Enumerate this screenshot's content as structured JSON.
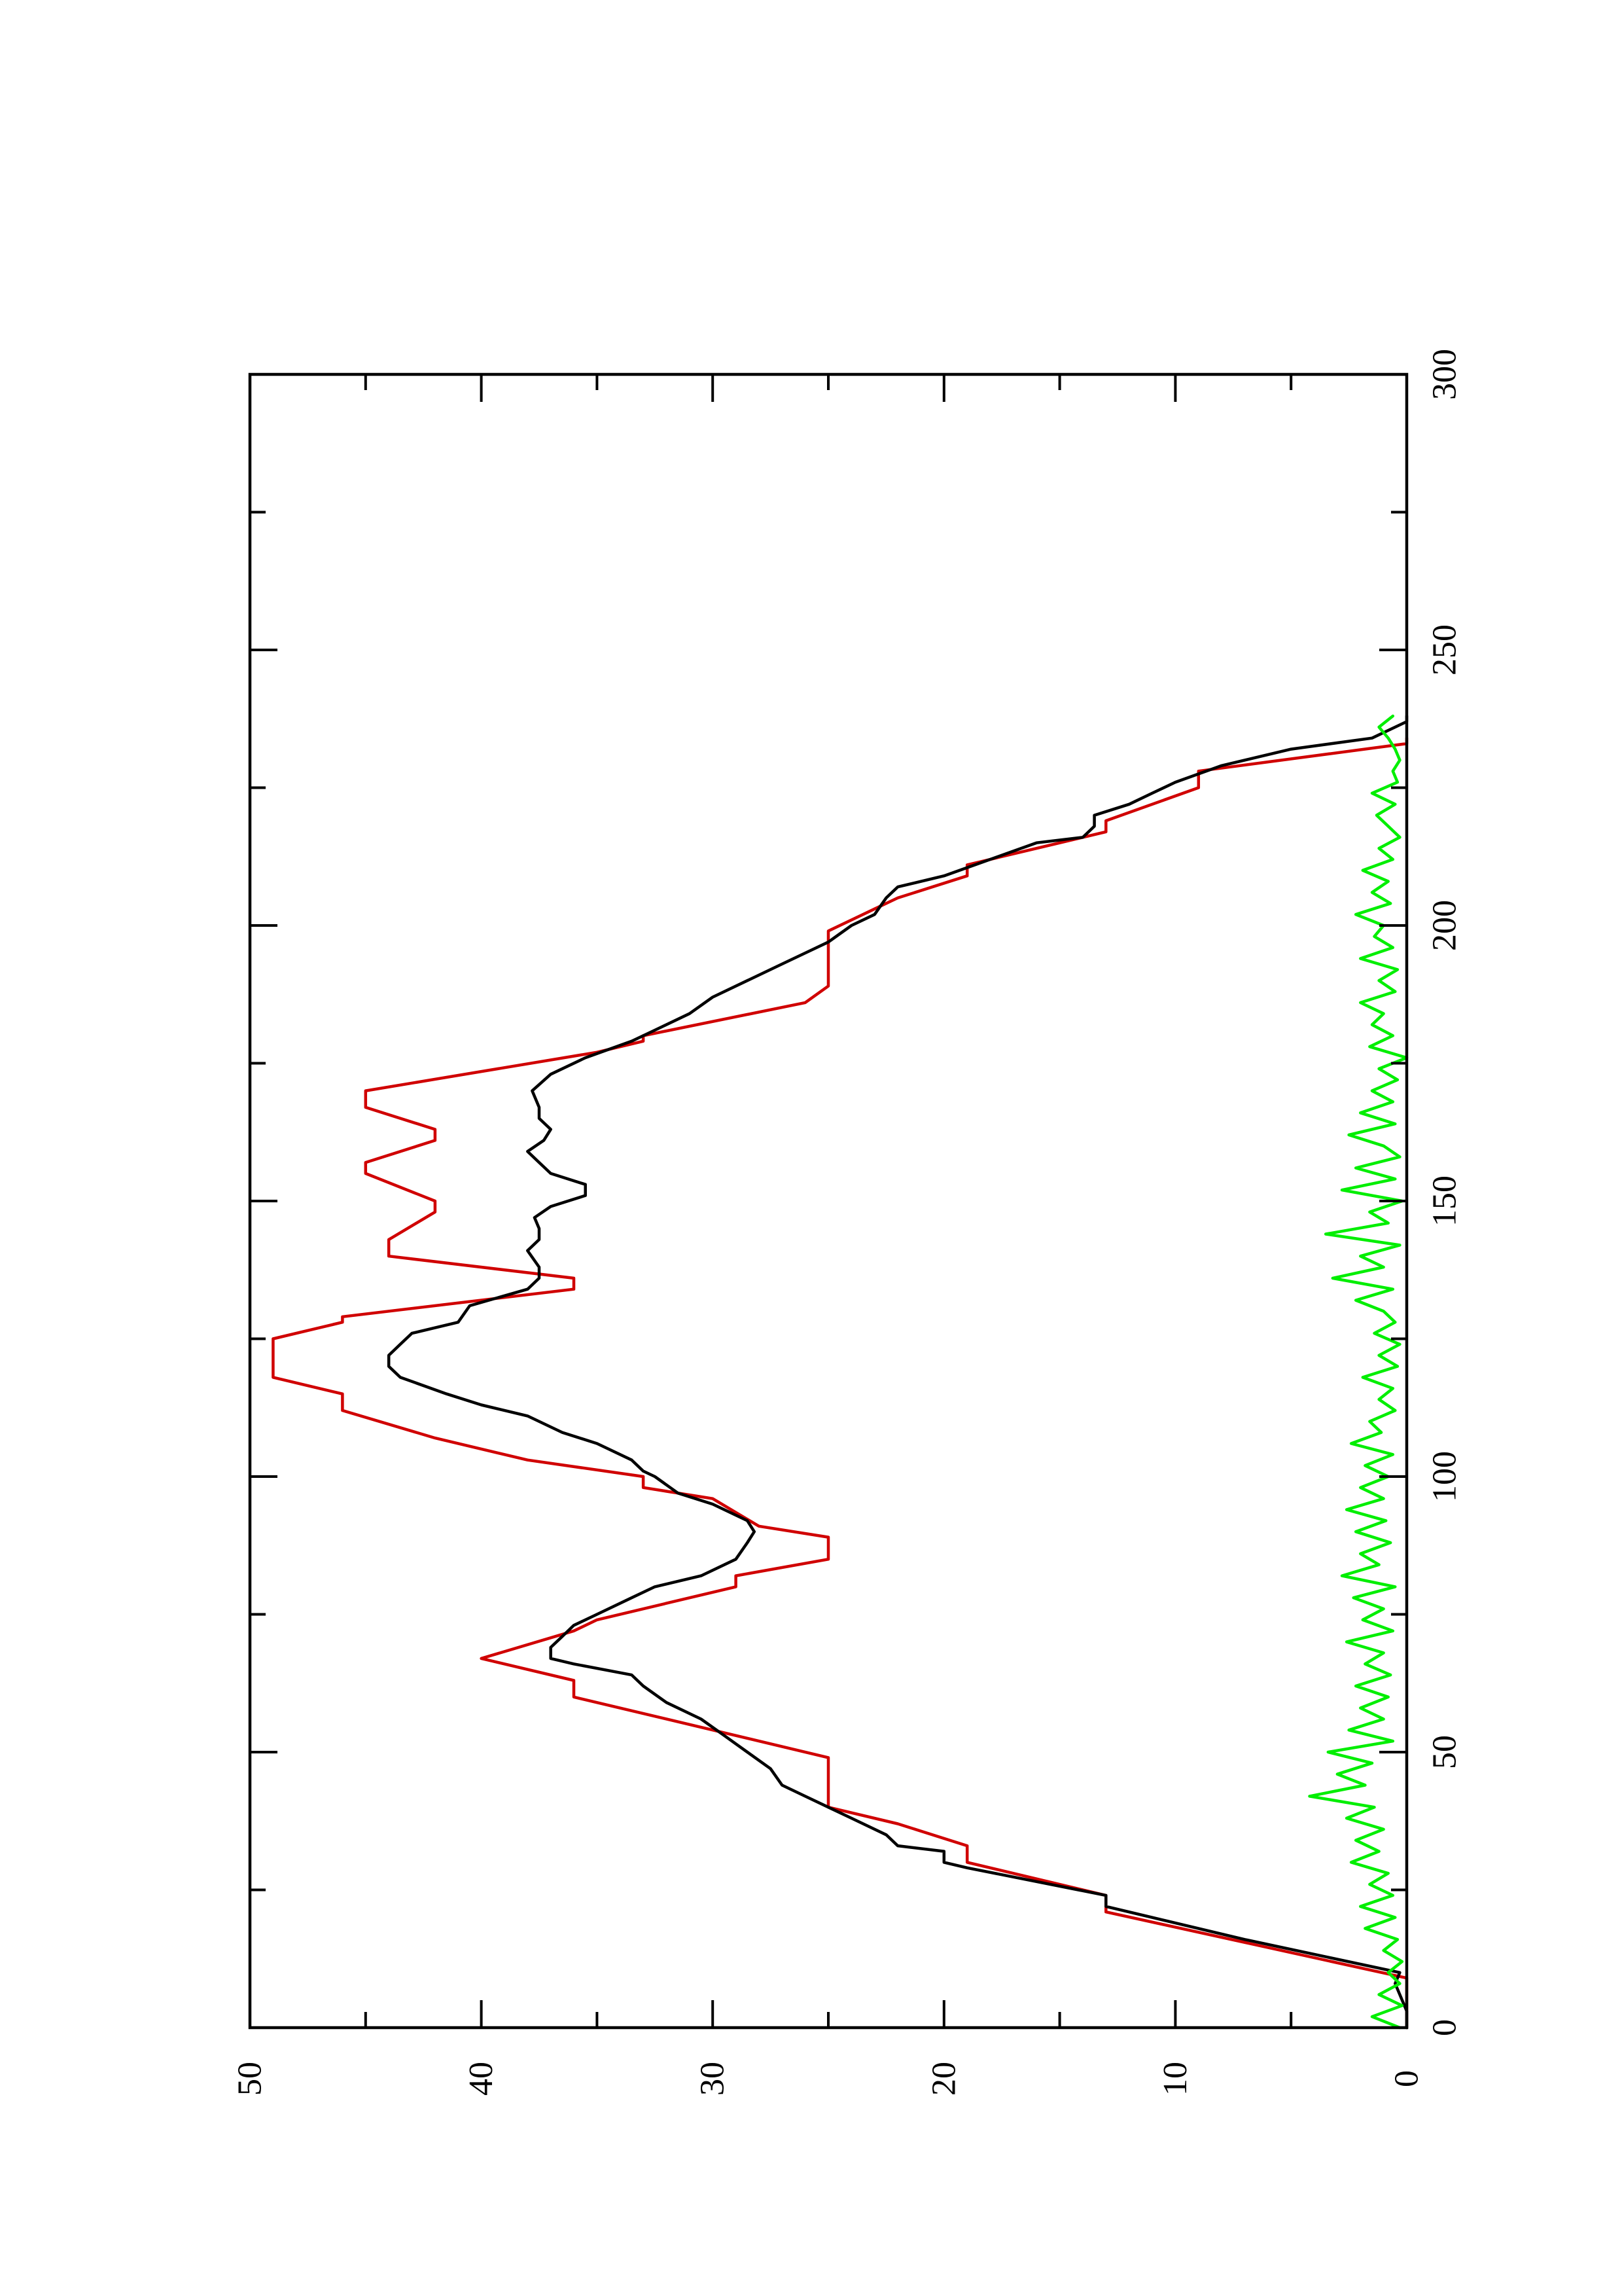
{
  "chart_data": {
    "type": "line",
    "orientation": "rotated-90-ccw",
    "title": "",
    "xlabel": "",
    "ylabel": "",
    "xlim": [
      0,
      300
    ],
    "ylim": [
      0,
      50
    ],
    "x_ticks": [
      "0",
      "50",
      "100",
      "150",
      "200",
      "250",
      "300"
    ],
    "y_ticks": [
      "0",
      "10",
      "20",
      "30",
      "40",
      "50"
    ],
    "grid": false,
    "legend": "none",
    "series": [
      {
        "color": "#d00000",
        "x": [
          0,
          9,
          21,
          24,
          30,
          33,
          37,
          40,
          49,
          53,
          60,
          63,
          67,
          72,
          74,
          80,
          82,
          85,
          89,
          91,
          96,
          98,
          100,
          103,
          107,
          112,
          115,
          118,
          125,
          128,
          129,
          134,
          136,
          140,
          143,
          148,
          150,
          155,
          157,
          161,
          163,
          167,
          170,
          177,
          179,
          180,
          186,
          189,
          193,
          197,
          199,
          203,
          205,
          209,
          211,
          217,
          219,
          225,
          228,
          233,
          234
        ],
        "y": [
          0,
          0,
          13,
          13,
          19,
          19,
          22,
          25,
          25,
          29,
          36,
          36,
          40,
          36,
          35,
          29,
          29,
          25,
          25,
          28,
          30,
          33,
          33,
          38,
          42,
          46,
          46,
          49,
          49,
          46,
          46,
          36,
          36,
          44,
          44,
          42,
          42,
          45,
          45,
          42,
          42,
          45,
          45,
          35,
          33,
          33,
          26,
          25,
          25,
          25,
          25,
          23,
          22,
          19,
          19,
          13,
          13,
          9,
          9,
          0,
          0
        ]
      },
      {
        "color": "#000000",
        "x": [
          0,
          3,
          8,
          10,
          16,
          22,
          24,
          29,
          30,
          32,
          33,
          35,
          38,
          40,
          42,
          44,
          47,
          50,
          53,
          56,
          59,
          62,
          64,
          66,
          67,
          69,
          71,
          73,
          75,
          78,
          80,
          82,
          85,
          88,
          90,
          92,
          95,
          97,
          100,
          101,
          103,
          106,
          108,
          111,
          113,
          115,
          118,
          120,
          122,
          124,
          126,
          128,
          131,
          134,
          136,
          138,
          141,
          143,
          145,
          147,
          149,
          151,
          153,
          155,
          157,
          159,
          161,
          163,
          165,
          167,
          170,
          173,
          176,
          179,
          181,
          184,
          187,
          190,
          193,
          195,
          197,
          200,
          202,
          205,
          207,
          209,
          212,
          215,
          216,
          218,
          220,
          222,
          224,
          226,
          229,
          232,
          234,
          237,
          238
        ],
        "y": [
          0,
          0,
          0.5,
          0.3,
          7,
          13,
          13,
          19,
          20,
          20,
          22,
          22.5,
          24,
          25,
          26,
          27,
          27.5,
          28.5,
          29.5,
          30.5,
          32,
          33,
          33.5,
          36,
          37,
          37,
          36.5,
          36,
          35,
          33.5,
          32.5,
          30.5,
          29,
          28.5,
          28.2,
          28.5,
          30,
          31.5,
          32.5,
          33,
          33.5,
          35,
          36.5,
          38,
          40,
          41.5,
          43.5,
          44,
          44,
          43.5,
          43,
          41,
          40.5,
          38,
          37.5,
          37.5,
          38,
          37.5,
          37.5,
          37.7,
          37,
          35.5,
          35.5,
          37,
          37.5,
          38,
          37.3,
          37,
          37.5,
          37.5,
          37.8,
          37,
          35.5,
          33.5,
          32.5,
          31,
          30,
          28.5,
          27,
          26,
          25,
          24,
          23,
          22.5,
          22,
          20,
          18,
          16,
          14,
          13.5,
          13.5,
          12,
          11,
          10,
          8,
          5,
          1.5,
          0,
          0
        ]
      },
      {
        "color": "#00ee00",
        "x": [
          0,
          2,
          4,
          6,
          8,
          10,
          12,
          14,
          16,
          18,
          20,
          22,
          24,
          26,
          28,
          30,
          32,
          34,
          36,
          38,
          40,
          42,
          44,
          46,
          48,
          50,
          52,
          54,
          56,
          58,
          60,
          62,
          64,
          66,
          68,
          70,
          72,
          74,
          76,
          78,
          80,
          82,
          84,
          86,
          88,
          90,
          92,
          94,
          96,
          98,
          100,
          102,
          104,
          106,
          108,
          110,
          112,
          114,
          116,
          118,
          120,
          122,
          124,
          126,
          128,
          130,
          132,
          134,
          136,
          138,
          140,
          142,
          144,
          146,
          148,
          150,
          152,
          154,
          156,
          158,
          160,
          162,
          164,
          166,
          168,
          170,
          172,
          174,
          176,
          178,
          180,
          182,
          184,
          186,
          188,
          190,
          192,
          194,
          196,
          198,
          200,
          202,
          204,
          206,
          208,
          210,
          212,
          214,
          216,
          218,
          220,
          222,
          224,
          226,
          228,
          230,
          232,
          234,
          236,
          238
        ],
        "y": [
          0.3,
          1.5,
          0.2,
          1.2,
          0.3,
          0.8,
          0.2,
          1.0,
          0.4,
          1.8,
          0.5,
          2.0,
          0.6,
          1.6,
          0.8,
          2.4,
          1.2,
          2.2,
          1.0,
          2.6,
          1.4,
          4.2,
          1.8,
          3.0,
          1.5,
          3.4,
          0.6,
          2.5,
          1.0,
          2.0,
          0.8,
          2.2,
          0.7,
          1.8,
          1.0,
          2.6,
          0.6,
          1.9,
          1.0,
          2.3,
          0.5,
          2.8,
          1.2,
          2.0,
          0.7,
          2.2,
          0.9,
          2.6,
          1.0,
          2.0,
          0.8,
          1.8,
          0.6,
          2.4,
          1.1,
          1.6,
          0.5,
          1.2,
          0.6,
          1.9,
          0.4,
          1.2,
          0.3,
          1.4,
          0.5,
          1.0,
          2.2,
          0.6,
          3.2,
          1.0,
          2.0,
          0.3,
          3.5,
          0.8,
          1.6,
          0.2,
          2.8,
          0.5,
          2.2,
          0.3,
          1.0,
          2.5,
          0.5,
          2.0,
          0.6,
          1.5,
          0.4,
          1.2,
          0.0,
          1.6,
          0.6,
          1.5,
          1.0,
          2.0,
          0.5,
          1.2,
          0.4,
          2.0,
          0.6,
          1.4,
          1.0,
          2.2,
          0.7,
          1.5,
          0.8,
          1.9,
          0.6,
          1.2,
          0.3,
          0.8,
          1.3,
          0.5,
          1.5,
          0.4,
          0.6,
          0.3,
          0.5,
          0.8,
          1.2,
          0.6
        ]
      }
    ]
  }
}
